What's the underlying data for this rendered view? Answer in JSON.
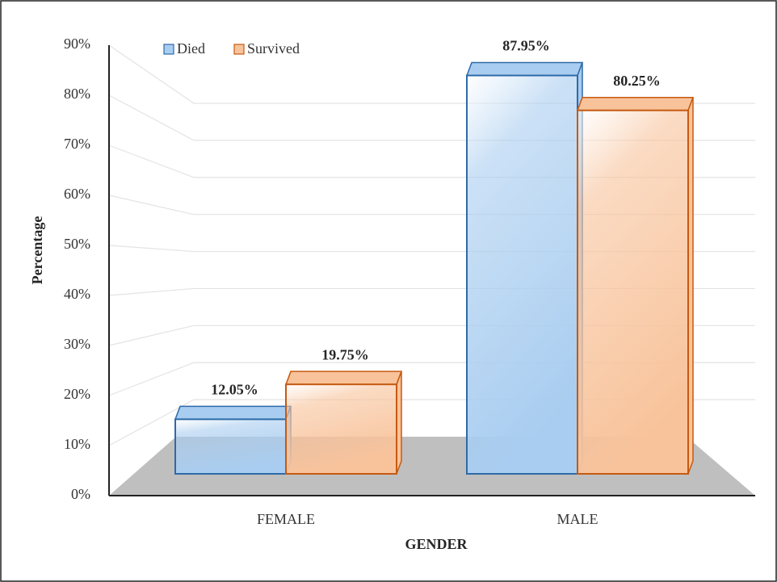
{
  "chart_data": {
    "type": "bar",
    "x_label": "GENDER",
    "y_label": "Percentage",
    "categories": [
      "FEMALE",
      "MALE"
    ],
    "series": [
      {
        "name": "Died",
        "color": "#a9cdf0",
        "values": [
          12.05,
          87.95
        ],
        "value_labels": [
          "12.05%",
          "87.95%"
        ]
      },
      {
        "name": "Survived",
        "color": "#f8c39b",
        "values": [
          19.75,
          80.25
        ],
        "value_labels": [
          "19.75%",
          "80.25%"
        ]
      }
    ],
    "ylim": [
      0,
      90
    ],
    "yticks": [
      {
        "value": 0,
        "label": "0%"
      },
      {
        "value": 10,
        "label": "10%"
      },
      {
        "value": 20,
        "label": "20%"
      },
      {
        "value": 30,
        "label": "30%"
      },
      {
        "value": 40,
        "label": "40%"
      },
      {
        "value": 50,
        "label": "50%"
      },
      {
        "value": 60,
        "label": "60%"
      },
      {
        "value": 70,
        "label": "70%"
      },
      {
        "value": 80,
        "label": "80%"
      },
      {
        "value": 90,
        "label": "90%"
      }
    ],
    "grid": true,
    "legend": "top-left"
  }
}
